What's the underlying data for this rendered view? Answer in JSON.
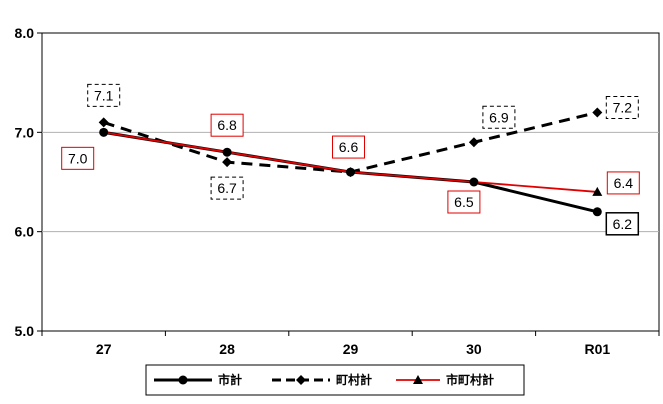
{
  "chart_data": {
    "type": "line",
    "title": "",
    "xlabel": "",
    "ylabel": "",
    "categories": [
      "27",
      "28",
      "29",
      "30",
      "R01"
    ],
    "ylim": [
      5.0,
      8.0
    ],
    "yticks": [
      "5.0",
      "6.0",
      "7.0",
      "8.0"
    ],
    "ytick_values": [
      5.0,
      6.0,
      7.0,
      8.0
    ],
    "grid": true,
    "legend_position": "bottom",
    "series": [
      {
        "name": "市計",
        "values": [
          7.0,
          6.8,
          6.6,
          6.5,
          6.2
        ],
        "color": "#000000",
        "style": "solid",
        "marker": "circle",
        "labels": [
          "",
          "",
          "",
          "",
          "6.2"
        ]
      },
      {
        "name": "町村計",
        "values": [
          7.1,
          6.7,
          6.6,
          6.9,
          7.2
        ],
        "color": "#000000",
        "style": "dashed",
        "marker": "diamond",
        "labels": [
          "7.1",
          "6.7",
          "",
          "6.9",
          "7.2"
        ]
      },
      {
        "name": "市町村計",
        "values": [
          7.0,
          6.8,
          6.6,
          6.5,
          6.4
        ],
        "color": "#e00000",
        "style": "solid",
        "marker": "triangle",
        "labels": [
          "7.0",
          "6.8",
          "6.6",
          "6.5",
          "6.4"
        ]
      }
    ]
  }
}
